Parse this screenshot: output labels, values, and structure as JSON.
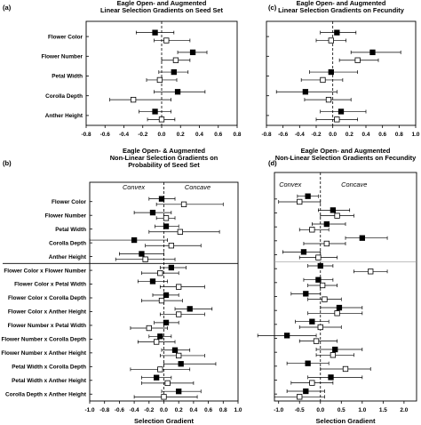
{
  "chart_data": [
    {
      "panel_label": "(a)",
      "type": "scatter",
      "title_lines": [
        "Eagle Open- and Augmented",
        "Linear Selection Gradients on Seed Set"
      ],
      "categories": [
        "Flower Color",
        "Flower Number",
        "Petal Width",
        "Corolla Depth",
        "Anther Height"
      ],
      "series": [
        {
          "marker": "filled-square",
          "values": [
            -0.07,
            0.33,
            0.13,
            0.17,
            -0.07
          ],
          "ci": [
            [
              -0.27,
              0.13
            ],
            [
              0.17,
              0.48
            ],
            [
              -0.03,
              0.28
            ],
            [
              -0.08,
              0.46
            ],
            [
              -0.24,
              0.1
            ]
          ]
        },
        {
          "marker": "open-square",
          "values": [
            0.05,
            0.15,
            -0.02,
            -0.3,
            0.0
          ],
          "ci": [
            [
              -0.08,
              0.3
            ],
            [
              0.0,
              0.3
            ],
            [
              -0.16,
              0.16
            ],
            [
              -0.55,
              0.1
            ],
            [
              -0.15,
              0.14
            ]
          ]
        }
      ],
      "xlim": [
        -0.8,
        0.8
      ],
      "xticks": [
        "-0.8",
        "-0.6",
        "-0.4",
        "-0.2",
        "0.0",
        "0.2",
        "0.4",
        "0.6",
        "0.8"
      ],
      "xlabel": "",
      "reference_line": 0
    },
    {
      "panel_label": "(c)",
      "type": "scatter",
      "title_lines": [
        "Eagle Open- and Augmented",
        "Linear Selection Gradients on Fecundity"
      ],
      "categories": [
        "",
        "",
        "",
        "",
        ""
      ],
      "series": [
        {
          "marker": "filled-square",
          "values": [
            0.05,
            0.48,
            -0.02,
            -0.33,
            0.1
          ],
          "ci": [
            [
              -0.15,
              0.28
            ],
            [
              0.22,
              0.82
            ],
            [
              -0.28,
              0.3
            ],
            [
              -0.68,
              0.05
            ],
            [
              -0.15,
              0.4
            ]
          ]
        },
        {
          "marker": "open-square",
          "values": [
            -0.02,
            0.3,
            -0.12,
            -0.05,
            0.05
          ],
          "ci": [
            [
              -0.2,
              0.16
            ],
            [
              0.08,
              0.55
            ],
            [
              -0.38,
              0.12
            ],
            [
              -0.34,
              0.22
            ],
            [
              -0.2,
              0.3
            ]
          ]
        }
      ],
      "xlim": [
        -0.8,
        1.0
      ],
      "xticks": [
        "-0.8",
        "-0.6",
        "-0.4",
        "-0.2",
        "0.0",
        "0.2",
        "0.4",
        "0.6",
        "0.8",
        "1.0"
      ],
      "xlabel": "",
      "reference_line": 0
    },
    {
      "panel_label": "(b)",
      "type": "scatter",
      "title_lines": [
        "Eagle Open- & Augmented",
        "Non-Linear Selection Gradients on",
        "Probability of Seed Set"
      ],
      "annotations": [
        "Convex",
        "Concave"
      ],
      "categories": [
        "Flower Color",
        "Flower Number",
        "Petal Width",
        "Corolla Depth",
        "Anther Height",
        "Flower Color x Flower Number",
        "Flower Color x Petal Width",
        "Flower Color x Corolla Depth",
        "Flower Color x Anther Height",
        "Flower Number x Petal Width",
        "Flower Number x Corolla Depth",
        "Flower Number x Anther Height",
        "Petal Width x Corolla Depth",
        "Petal Width x Anther Height",
        "Corolla Depth x Anther Height"
      ],
      "series": [
        {
          "marker": "filled-square",
          "values": [
            -0.03,
            -0.15,
            0.03,
            -0.4,
            -0.3,
            0.1,
            -0.15,
            0.03,
            0.35,
            0.03,
            -0.05,
            0.15,
            0.23,
            -0.1,
            0.2
          ],
          "ci": [
            [
              -0.2,
              0.15
            ],
            [
              -0.4,
              0.1
            ],
            [
              -0.12,
              0.2
            ],
            [
              -1.0,
              0.05
            ],
            [
              -0.6,
              0.0
            ],
            [
              -0.05,
              0.3
            ],
            [
              -0.35,
              0.05
            ],
            [
              -0.15,
              0.2
            ],
            [
              0.15,
              0.65
            ],
            [
              -0.13,
              0.2
            ],
            [
              -0.2,
              0.1
            ],
            [
              -0.03,
              0.35
            ],
            [
              0.0,
              0.7
            ],
            [
              -0.3,
              0.1
            ],
            [
              -0.03,
              0.5
            ]
          ]
        },
        {
          "marker": "open-square",
          "values": [
            0.27,
            0.03,
            0.22,
            0.1,
            -0.25,
            -0.05,
            0.2,
            -0.03,
            0.2,
            -0.2,
            -0.1,
            0.2,
            -0.05,
            0.05,
            0.0
          ],
          "ci": [
            [
              -0.1,
              0.8
            ],
            [
              -0.1,
              0.15
            ],
            [
              -0.2,
              0.75
            ],
            [
              -0.25,
              0.5
            ],
            [
              -0.65,
              0.15
            ],
            [
              -0.3,
              0.2
            ],
            [
              -0.05,
              0.55
            ],
            [
              -0.3,
              0.25
            ],
            [
              -0.05,
              0.55
            ],
            [
              -0.45,
              0.05
            ],
            [
              -0.35,
              0.15
            ],
            [
              -0.05,
              0.55
            ],
            [
              -0.45,
              0.35
            ],
            [
              -0.3,
              0.4
            ],
            [
              -0.4,
              0.45
            ]
          ]
        }
      ],
      "xlim": [
        -1.0,
        1.0
      ],
      "xticks": [
        "-1.0",
        "-0.8",
        "-0.6",
        "-0.4",
        "-0.2",
        "0.0",
        "0.2",
        "0.4",
        "0.6",
        "0.8",
        "1.0"
      ],
      "xlabel": "Selection Gradient",
      "reference_line": 0
    },
    {
      "panel_label": "(d)",
      "type": "scatter",
      "title_lines": [
        "Eagle Open- and Augmented",
        "Non-Linear Selection Gradients on Fecundity"
      ],
      "annotations": [
        "Convex",
        "Concave"
      ],
      "categories": [
        "",
        "",
        "",
        "",
        "",
        "",
        "",
        "",
        "",
        "",
        "",
        "",
        "",
        "",
        ""
      ],
      "series": [
        {
          "marker": "filled-square",
          "values": [
            -0.3,
            0.3,
            0.15,
            1.0,
            -0.4,
            0.0,
            -0.05,
            -0.35,
            0.45,
            -0.2,
            -0.8,
            0.35,
            -0.3,
            0.25,
            -0.35
          ],
          "ci": [
            [
              -0.55,
              -0.05
            ],
            [
              -0.05,
              0.7
            ],
            [
              -0.2,
              0.6
            ],
            [
              0.6,
              1.6
            ],
            [
              -0.9,
              0.0
            ],
            [
              -0.3,
              0.3
            ],
            [
              -0.4,
              0.3
            ],
            [
              -0.7,
              0.0
            ],
            [
              0.0,
              1.0
            ],
            [
              -0.6,
              0.2
            ],
            [
              -1.5,
              -0.1
            ],
            [
              -0.1,
              1.0
            ],
            [
              -0.8,
              0.2
            ],
            [
              -0.3,
              1.0
            ],
            [
              -0.8,
              0.1
            ]
          ]
        },
        {
          "marker": "open-square",
          "values": [
            -0.5,
            0.4,
            -0.2,
            0.15,
            -0.05,
            1.2,
            0.05,
            0.1,
            0.4,
            0.0,
            -0.1,
            0.3,
            0.6,
            -0.2,
            -0.5
          ],
          "ci": [
            [
              -1.0,
              0.0
            ],
            [
              0.0,
              0.8
            ],
            [
              -0.5,
              0.2
            ],
            [
              -0.4,
              0.6
            ],
            [
              -0.5,
              0.4
            ],
            [
              0.8,
              1.6
            ],
            [
              -0.3,
              0.4
            ],
            [
              -0.3,
              0.5
            ],
            [
              -0.3,
              1.0
            ],
            [
              -0.5,
              0.5
            ],
            [
              -0.5,
              0.4
            ],
            [
              -0.1,
              0.8
            ],
            [
              0.0,
              1.2
            ],
            [
              -0.7,
              0.3
            ],
            [
              -1.1,
              0.1
            ]
          ]
        }
      ],
      "xlim": [
        -1.1,
        2.3
      ],
      "xticks": [
        "-1.0",
        "-0.5",
        "0.0",
        "0.5",
        "1.0",
        "1.5",
        "2.0"
      ],
      "xlabel": "Selection Gradient",
      "reference_line": 0
    }
  ]
}
